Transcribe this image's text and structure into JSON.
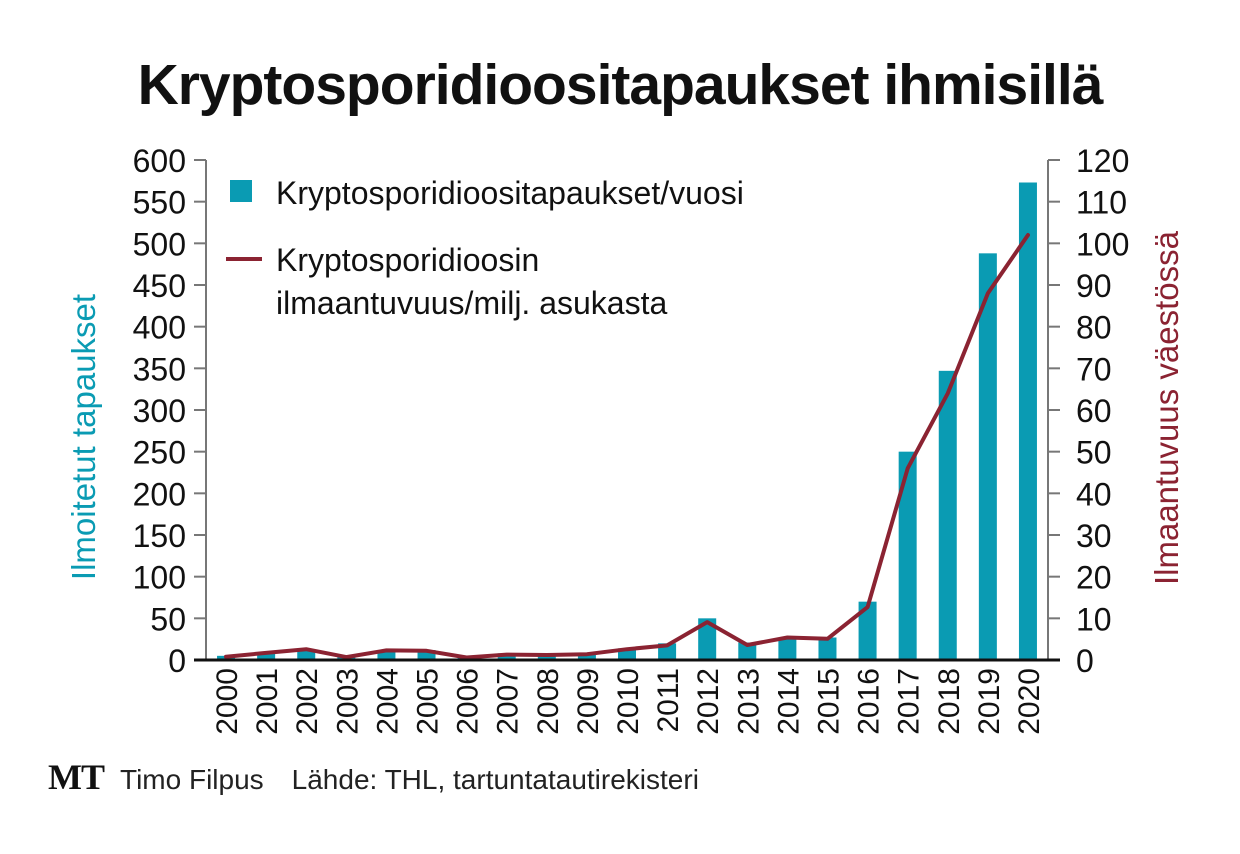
{
  "chart_data": {
    "type": "bar",
    "title": "Kryptosporidioositapaukset ihmisillä",
    "categories": [
      "2000",
      "2001",
      "2002",
      "2003",
      "2004",
      "2005",
      "2006",
      "2007",
      "2008",
      "2009",
      "2010",
      "2011",
      "2012",
      "2013",
      "2014",
      "2015",
      "2016",
      "2017",
      "2018",
      "2019",
      "2020"
    ],
    "series": [
      {
        "name": "Kryptosporidioositapaukset/vuosi",
        "type": "bar",
        "axis": "left",
        "color": "#0a9bb3",
        "values": [
          5,
          8,
          13,
          5,
          11,
          12,
          5,
          8,
          8,
          8,
          14,
          20,
          50,
          21,
          27,
          27,
          70,
          250,
          347,
          488,
          573
        ]
      },
      {
        "name": "Kryptosporidioosin ilmaantuvuus/milj. asukasta",
        "type": "line",
        "axis": "right",
        "color": "#8b2332",
        "values": [
          0.8,
          1.7,
          2.6,
          0.7,
          2.3,
          2.2,
          0.6,
          1.3,
          1.2,
          1.4,
          2.6,
          3.5,
          9.1,
          3.6,
          5.4,
          5.1,
          12.7,
          46,
          64,
          88,
          102
        ]
      }
    ],
    "ylabel": "Ilmoitetut tapaukset",
    "ylabel_color": "#0a9bb3",
    "y2label": "Ilmaantuvuus väestössä",
    "y2label_color": "#8b2332",
    "ylim": [
      0,
      600
    ],
    "y2lim": [
      0,
      120
    ],
    "yticks": [
      0,
      50,
      100,
      150,
      200,
      250,
      300,
      350,
      400,
      450,
      500,
      550,
      600
    ],
    "y2ticks": [
      0,
      10,
      20,
      30,
      40,
      50,
      60,
      70,
      80,
      90,
      100,
      110,
      120
    ],
    "grid": false,
    "legend_position": "top-left"
  },
  "footer": {
    "logo": "MT",
    "author": "Timo Filpus",
    "source": "Lähde: THL, tartuntatautirekisteri"
  }
}
